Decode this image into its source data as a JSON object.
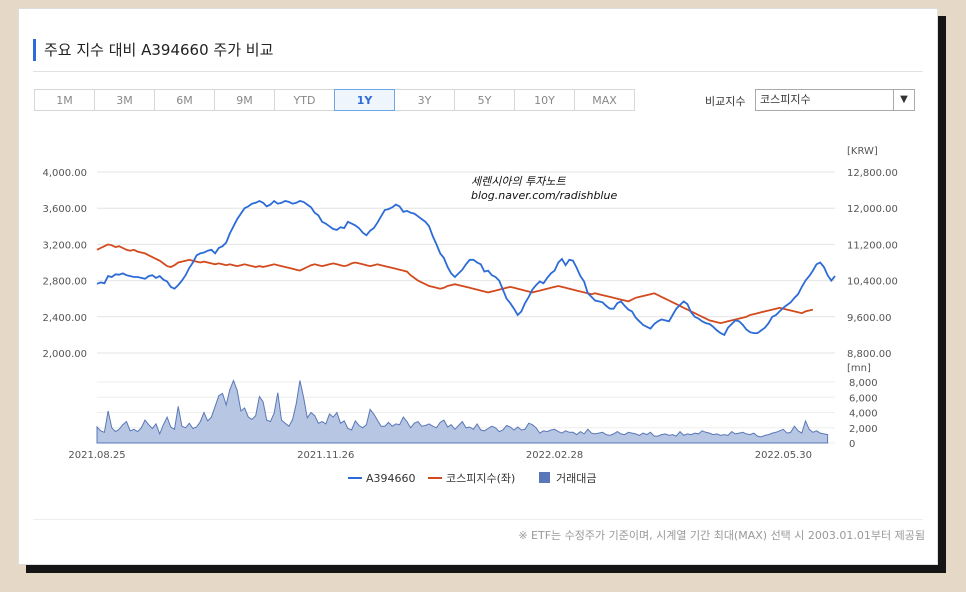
{
  "title": "주요 지수 대비 A394660 주가 비교",
  "tabs": [
    {
      "label": "1M",
      "active": false
    },
    {
      "label": "3M",
      "active": false
    },
    {
      "label": "6M",
      "active": false
    },
    {
      "label": "9M",
      "active": false
    },
    {
      "label": "YTD",
      "active": false
    },
    {
      "label": "1Y",
      "active": true
    },
    {
      "label": "3Y",
      "active": false
    },
    {
      "label": "5Y",
      "active": false
    },
    {
      "label": "10Y",
      "active": false
    },
    {
      "label": "MAX",
      "active": false
    }
  ],
  "compare": {
    "label": "비교지수",
    "selected": "코스피지수"
  },
  "watermark": {
    "line1": "세렌시아의 투자노트",
    "line2": "blog.naver.com/radishblue"
  },
  "footnote": "※ ETF는 수정주가 기준이며, 시계열 기간 최대(MAX) 선택 시 2003.01.01부터 제공됨",
  "colors": {
    "stock": "#2d6bd6",
    "index": "#d24a1e",
    "volume_fill": "#b7c6e2",
    "volume_line": "#5a78b8",
    "active_tab": "#2d6bd6"
  },
  "chart_data": {
    "type": "line",
    "left_axis": {
      "ticks": [
        "4,000.00",
        "3,600.00",
        "3,200.00",
        "2,800.00",
        "2,400.00",
        "2,000.00"
      ],
      "range": [
        2000,
        4000
      ]
    },
    "right_axis": {
      "unit": "[KRW]",
      "ticks": [
        "12,800.00",
        "12,000.00",
        "11,200.00",
        "10,400.00",
        "9,600.00",
        "8,800.00"
      ],
      "range": [
        8800,
        12800
      ]
    },
    "volume_axis": {
      "unit": "[mn]",
      "ticks": [
        "8,000",
        "6,000",
        "4,000",
        "2,000",
        "0"
      ],
      "range": [
        0,
        8000
      ]
    },
    "x_ticks": [
      "2021.08.25",
      "2021.11.26",
      "2022.02.28",
      "2022.05.30"
    ],
    "x_tick_index": [
      0,
      62,
      124,
      186
    ],
    "legend": [
      {
        "name": "A394660",
        "kind": "line"
      },
      {
        "name": "코스피지수(좌)",
        "kind": "line"
      },
      {
        "name": "거래대금",
        "kind": "area"
      }
    ],
    "series": [
      {
        "name": "A394660",
        "axis": "right",
        "values": [
          10330,
          10360,
          10340,
          10500,
          10480,
          10540,
          10530,
          10560,
          10520,
          10500,
          10480,
          10480,
          10460,
          10440,
          10500,
          10520,
          10460,
          10500,
          10420,
          10380,
          10260,
          10220,
          10300,
          10400,
          10520,
          10680,
          10800,
          10960,
          11000,
          11020,
          11060,
          11080,
          11000,
          11120,
          11160,
          11240,
          11440,
          11600,
          11760,
          11880,
          12000,
          12040,
          12100,
          12120,
          12160,
          12120,
          12040,
          12080,
          12160,
          12100,
          12120,
          12160,
          12140,
          12100,
          12120,
          12160,
          12140,
          12080,
          12020,
          11900,
          11840,
          11700,
          11660,
          11600,
          11540,
          11520,
          11580,
          11560,
          11700,
          11660,
          11620,
          11560,
          11460,
          11400,
          11500,
          11560,
          11680,
          11820,
          11960,
          11980,
          12020,
          12080,
          12040,
          11920,
          11940,
          11900,
          11880,
          11820,
          11760,
          11700,
          11600,
          11380,
          11200,
          11000,
          10900,
          10700,
          10560,
          10480,
          10560,
          10640,
          10760,
          10860,
          10860,
          10800,
          10760,
          10600,
          10620,
          10520,
          10480,
          10400,
          10200,
          10000,
          9900,
          9780,
          9640,
          9720,
          9900,
          10040,
          10200,
          10300,
          10380,
          10340,
          10460,
          10560,
          10620,
          10800,
          10880,
          10740,
          10860,
          10840,
          10680,
          10500,
          10380,
          10120,
          10040,
          9960,
          9940,
          9920,
          9840,
          9780,
          9780,
          9900,
          9940,
          9840,
          9760,
          9720,
          9580,
          9500,
          9420,
          9380,
          9340,
          9440,
          9500,
          9540,
          9520,
          9500,
          9640,
          9780,
          9860,
          9940,
          9880,
          9700,
          9600,
          9560,
          9500,
          9460,
          9440,
          9380,
          9300,
          9240,
          9200,
          9360,
          9440,
          9520,
          9500,
          9420,
          9320,
          9260,
          9240,
          9240,
          9300,
          9360,
          9460,
          9600,
          9640,
          9720,
          9800,
          9860,
          9920,
          10020,
          10100,
          10260,
          10400,
          10500,
          10620,
          10760,
          10800,
          10700,
          10520,
          10400,
          10500
        ]
      },
      {
        "name": "코스피지수(좌)",
        "axis": "left",
        "values": [
          3140,
          3160,
          3180,
          3200,
          3190,
          3170,
          3180,
          3160,
          3140,
          3130,
          3140,
          3120,
          3110,
          3100,
          3080,
          3060,
          3040,
          3020,
          2990,
          2960,
          2950,
          2970,
          3000,
          3010,
          3020,
          3030,
          3020,
          3010,
          3000,
          3010,
          3000,
          2990,
          2980,
          2990,
          2980,
          2970,
          2980,
          2970,
          2960,
          2970,
          2980,
          2970,
          2960,
          2950,
          2960,
          2950,
          2960,
          2970,
          2980,
          2970,
          2960,
          2950,
          2940,
          2930,
          2920,
          2910,
          2930,
          2950,
          2970,
          2980,
          2970,
          2960,
          2970,
          2980,
          2990,
          2980,
          2970,
          2960,
          2970,
          2990,
          3000,
          2990,
          2980,
          2970,
          2960,
          2970,
          2980,
          2970,
          2960,
          2950,
          2940,
          2930,
          2920,
          2910,
          2900,
          2860,
          2830,
          2800,
          2780,
          2760,
          2740,
          2730,
          2720,
          2710,
          2720,
          2740,
          2750,
          2760,
          2750,
          2740,
          2730,
          2720,
          2710,
          2700,
          2690,
          2680,
          2670,
          2680,
          2690,
          2700,
          2710,
          2720,
          2730,
          2720,
          2710,
          2700,
          2690,
          2680,
          2670,
          2680,
          2690,
          2700,
          2710,
          2720,
          2730,
          2740,
          2730,
          2720,
          2710,
          2700,
          2690,
          2680,
          2670,
          2660,
          2650,
          2660,
          2650,
          2640,
          2630,
          2620,
          2610,
          2600,
          2590,
          2580,
          2570,
          2590,
          2610,
          2620,
          2630,
          2640,
          2650,
          2660,
          2640,
          2620,
          2600,
          2580,
          2560,
          2540,
          2520,
          2500,
          2480,
          2460,
          2440,
          2420,
          2400,
          2380,
          2360,
          2350,
          2340,
          2330,
          2340,
          2350,
          2360,
          2370,
          2380,
          2390,
          2400,
          2420,
          2430,
          2440,
          2450,
          2460,
          2470,
          2480,
          2490,
          2500,
          2490,
          2480,
          2470,
          2460,
          2450,
          2440,
          2460,
          2470,
          2480
        ]
      },
      {
        "name": "거래대금",
        "axis": "volume",
        "values": [
          2100,
          1600,
          1400,
          4200,
          2000,
          1500,
          1800,
          2400,
          2800,
          1600,
          1800,
          1500,
          2000,
          3000,
          2400,
          1900,
          2500,
          1200,
          2400,
          3400,
          2100,
          1800,
          4800,
          2200,
          2000,
          2600,
          1900,
          2100,
          2800,
          4000,
          2900,
          3400,
          4800,
          6200,
          6500,
          5000,
          7000,
          8200,
          6900,
          4200,
          4600,
          3400,
          3100,
          3600,
          6100,
          5400,
          3000,
          2800,
          3900,
          6600,
          3000,
          2600,
          2200,
          3100,
          5200,
          8200,
          6000,
          3300,
          4000,
          3600,
          2600,
          2800,
          2500,
          3800,
          3400,
          4000,
          2600,
          2900,
          1900,
          1700,
          2900,
          2300,
          2000,
          2400,
          4400,
          3800,
          3000,
          2200,
          2200,
          2700,
          2200,
          2500,
          2400,
          3400,
          2800,
          2000,
          2600,
          2800,
          2200,
          2300,
          2500,
          2200,
          2000,
          2700,
          3000,
          2100,
          2400,
          1800,
          2300,
          2800,
          2000,
          2100,
          1800,
          2500,
          1700,
          1600,
          1900,
          2200,
          2000,
          1500,
          1700,
          2300,
          2100,
          1700,
          2100,
          1700,
          1800,
          2600,
          2400,
          2000,
          1300,
          1600,
          1500,
          1700,
          1800,
          1500,
          1300,
          1600,
          1400,
          1400,
          1100,
          1500,
          1200,
          1800,
          1300,
          1200,
          1300,
          1400,
          1100,
          1000,
          1200,
          1500,
          1200,
          1100,
          1400,
          1300,
          1200,
          1000,
          1300,
          1100,
          1400,
          900,
          900,
          1100,
          1200,
          1000,
          1100,
          900,
          1500,
          1000,
          1200,
          1100,
          1300,
          1200,
          1600,
          1400,
          1300,
          1100,
          1200,
          1000,
          1100,
          1000,
          1500,
          1200,
          1300,
          1400,
          1200,
          1100,
          1300,
          900,
          800,
          1000,
          1100,
          1300,
          1400,
          1600,
          1800,
          1300,
          1400,
          2200,
          1600,
          1300,
          2900,
          1800,
          1400,
          1600,
          1300,
          1200,
          1100
        ]
      }
    ]
  }
}
